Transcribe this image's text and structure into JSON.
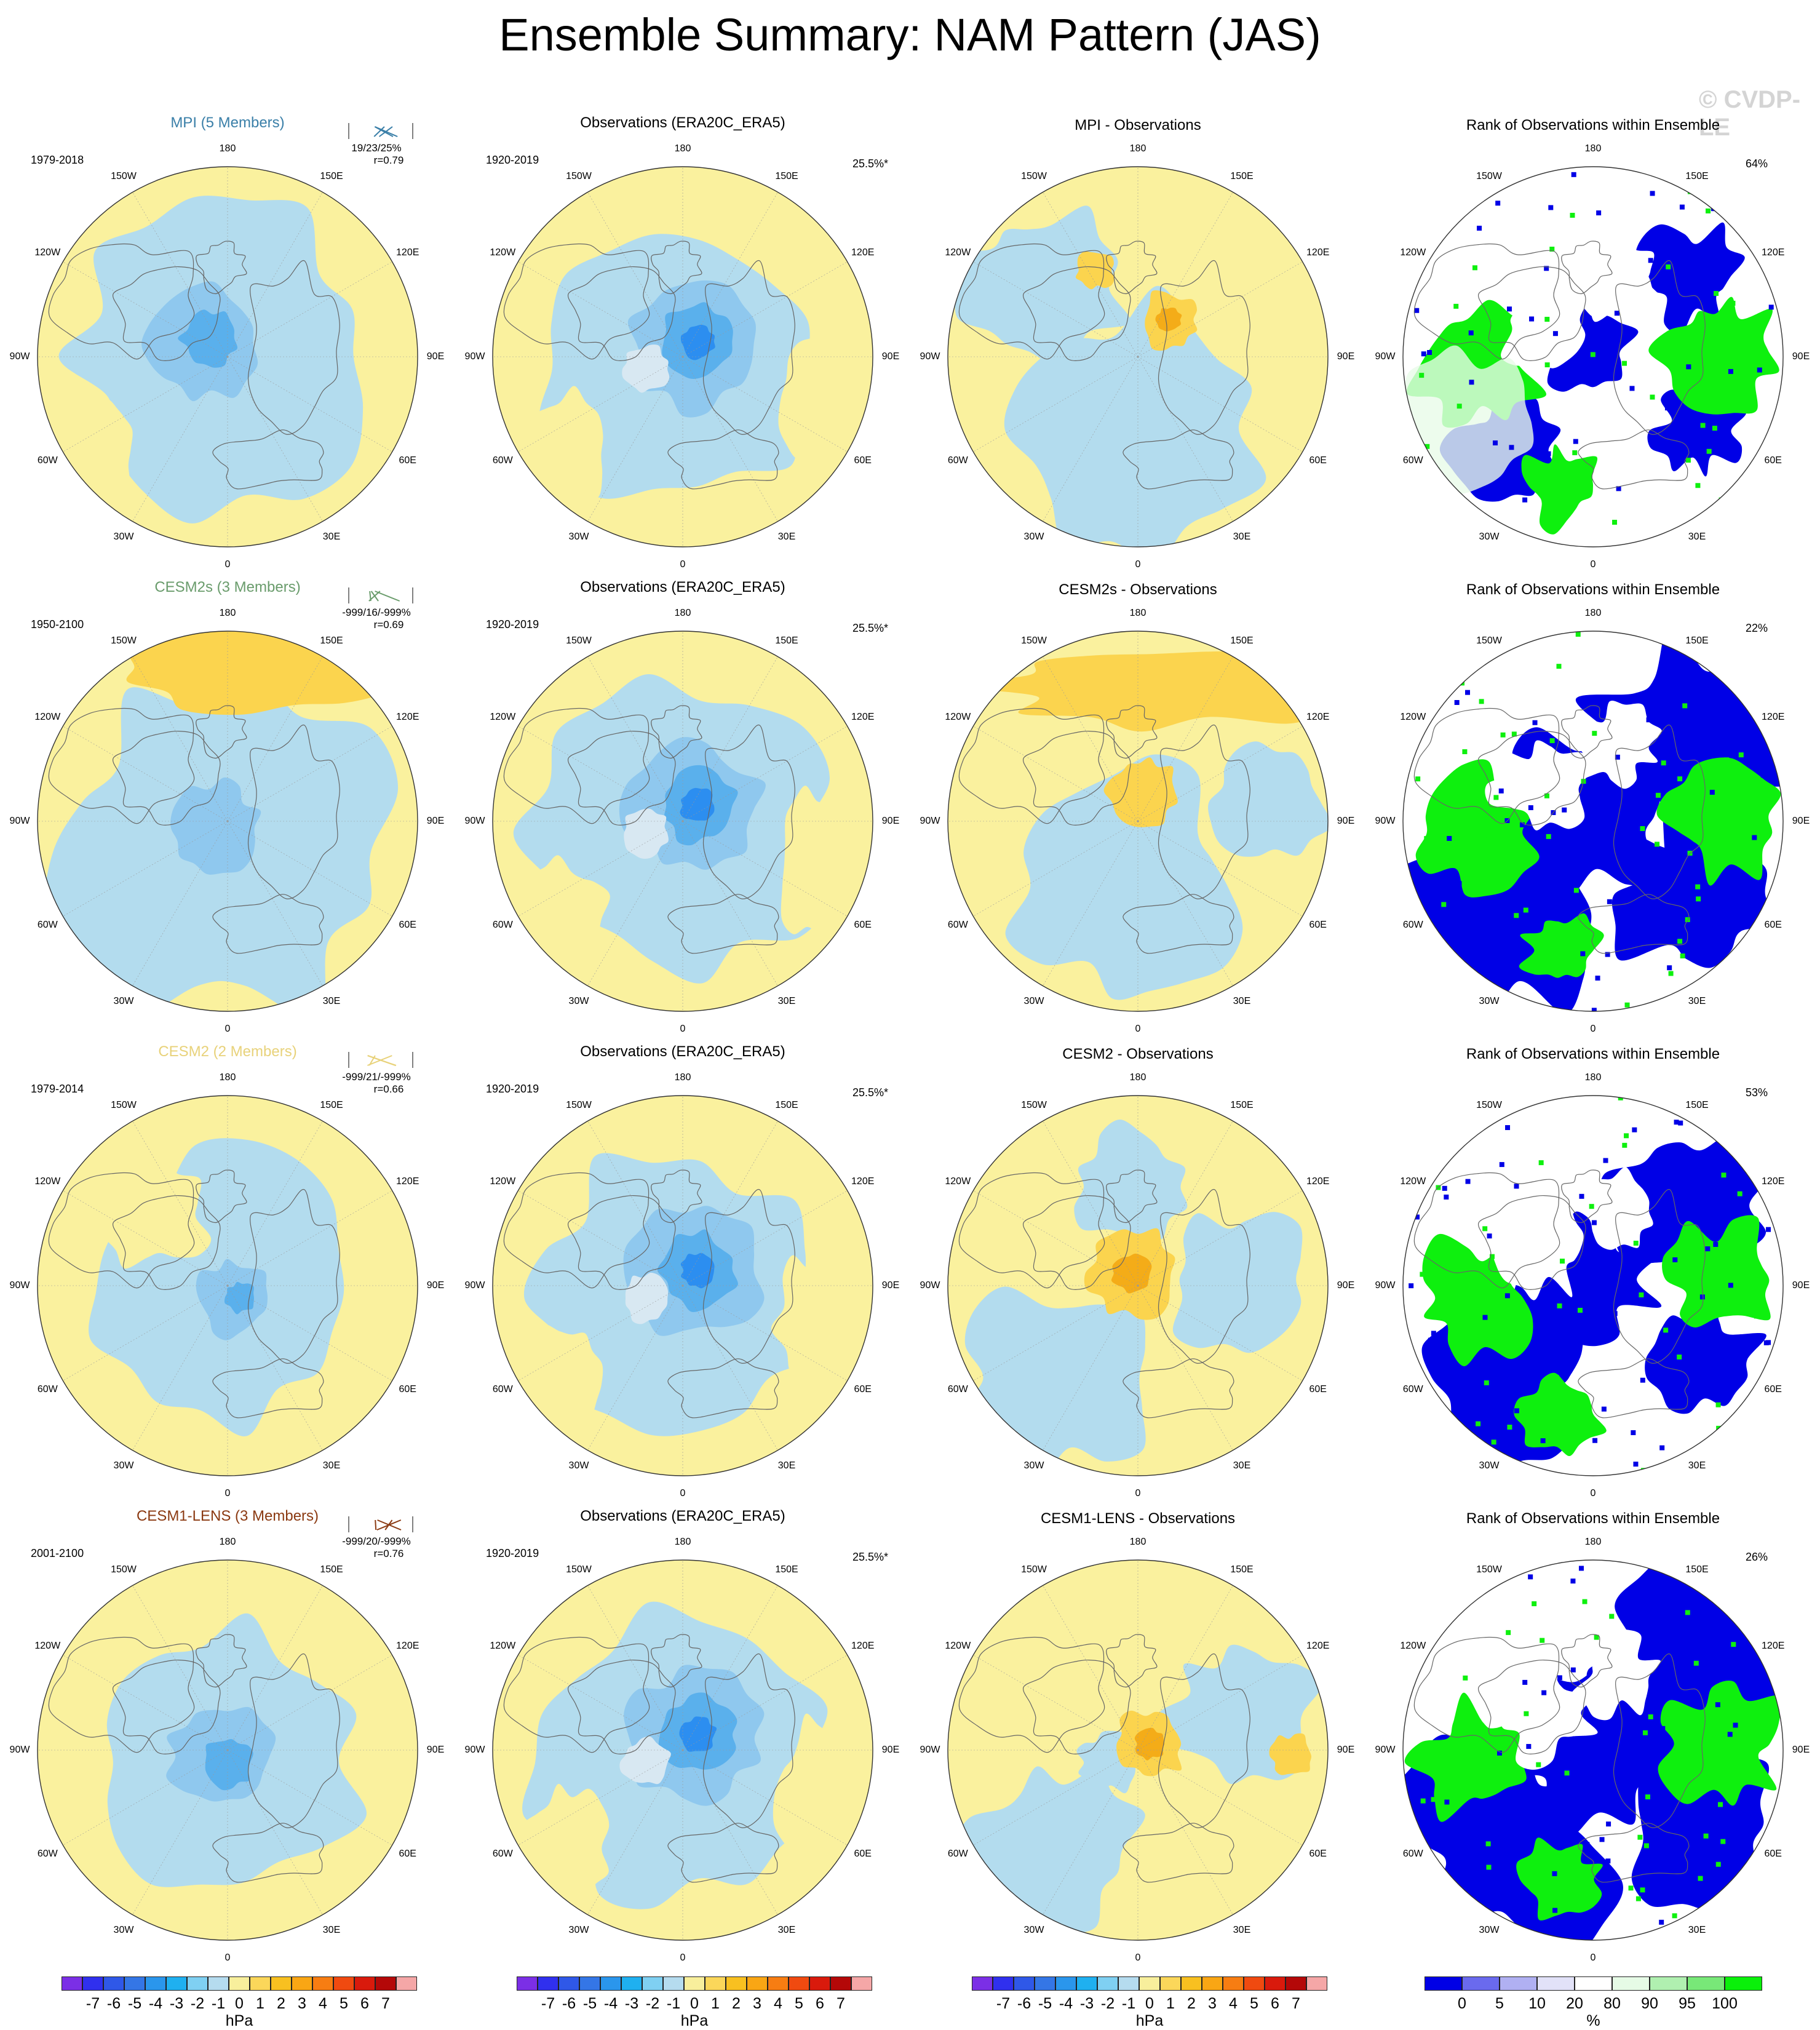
{
  "title": "Ensemble Summary: NAM Pattern (JAS)",
  "watermark": "© CVDP-LE",
  "rows": [
    {
      "model": {
        "title": "MPI (5 Members)",
        "color": "#3a7fa8",
        "period": "1979-2018",
        "stats": "19/23/25%",
        "corr": "r=0.79"
      },
      "obs": {
        "title": "Observations (ERA20C_ERA5)",
        "period": "1920-2019",
        "pct": "25.5%*"
      },
      "diff": {
        "title": "MPI - Observations"
      },
      "rank": {
        "title": "Rank of Observations within Ensemble",
        "pct": "64%"
      }
    },
    {
      "model": {
        "title": "CESM2s (3 Members)",
        "color": "#6a9c6c",
        "period": "1950-2100",
        "stats": "-999/16/-999%",
        "corr": "r=0.69"
      },
      "obs": {
        "title": "Observations (ERA20C_ERA5)",
        "period": "1920-2019",
        "pct": "25.5%*"
      },
      "diff": {
        "title": "CESM2s - Observations"
      },
      "rank": {
        "title": "Rank of Observations within Ensemble",
        "pct": "22%"
      }
    },
    {
      "model": {
        "title": "CESM2 (2 Members)",
        "color": "#e8d27a",
        "period": "1979-2014",
        "stats": "-999/21/-999%",
        "corr": "r=0.66"
      },
      "obs": {
        "title": "Observations (ERA20C_ERA5)",
        "period": "1920-2019",
        "pct": "25.5%*"
      },
      "diff": {
        "title": "CESM2 - Observations"
      },
      "rank": {
        "title": "Rank of Observations within Ensemble",
        "pct": "53%"
      }
    },
    {
      "model": {
        "title": "CESM1-LENS (3 Members)",
        "color": "#8b3a12",
        "period": "2001-2100",
        "stats": "-999/20/-999%",
        "corr": "r=0.76"
      },
      "obs": {
        "title": "Observations (ERA20C_ERA5)",
        "period": "1920-2019",
        "pct": "25.5%*"
      },
      "diff": {
        "title": "CESM1-LENS - Observations"
      },
      "rank": {
        "title": "Rank of Observations within Ensemble",
        "pct": "26%"
      }
    }
  ],
  "longitude_labels": [
    "180",
    "150E",
    "120E",
    "90E",
    "60E",
    "30E",
    "0",
    "30W",
    "60W",
    "90W",
    "120W",
    "150W"
  ],
  "hpa_colorbar": {
    "colors": [
      "#7b2fe6",
      "#3030ee",
      "#2f58e8",
      "#3476e6",
      "#2a96ec",
      "#1fb0f0",
      "#7fd0f2",
      "#b5dcef",
      "#f8ef9c",
      "#fbd75a",
      "#f8c020",
      "#f9a614",
      "#f77d12",
      "#f04a10",
      "#d91a0c",
      "#b40808",
      "#f5a7a7"
    ],
    "ticks": [
      "-7",
      "-6",
      "-5",
      "-4",
      "-3",
      "-2",
      "-1",
      "0",
      "1",
      "2",
      "3",
      "4",
      "5",
      "6",
      "7"
    ],
    "unit": "hPa"
  },
  "rank_colorbar": {
    "colors": [
      "#0000e6",
      "#6a6aee",
      "#b0b0f2",
      "#e2e2f8",
      "#ffffff",
      "#e6fbe6",
      "#b0f0b0",
      "#78e878",
      "#0af00a"
    ],
    "ticks": [
      "0",
      "5",
      "10",
      "20",
      "80",
      "90",
      "95",
      "100"
    ],
    "unit": "%"
  },
  "chart_data": [
    {
      "type": "heatmap",
      "panel": "model",
      "title": "MPI (5 Members)",
      "unit": "hPa"
    },
    {
      "type": "heatmap",
      "panel": "observations",
      "title": "Observations (ERA20C_ERA5)",
      "unit": "hPa"
    },
    {
      "type": "heatmap",
      "panel": "difference",
      "unit": "hPa"
    },
    {
      "type": "heatmap",
      "panel": "rank",
      "title": "Rank of Observations within Ensemble",
      "unit": "%"
    }
  ]
}
